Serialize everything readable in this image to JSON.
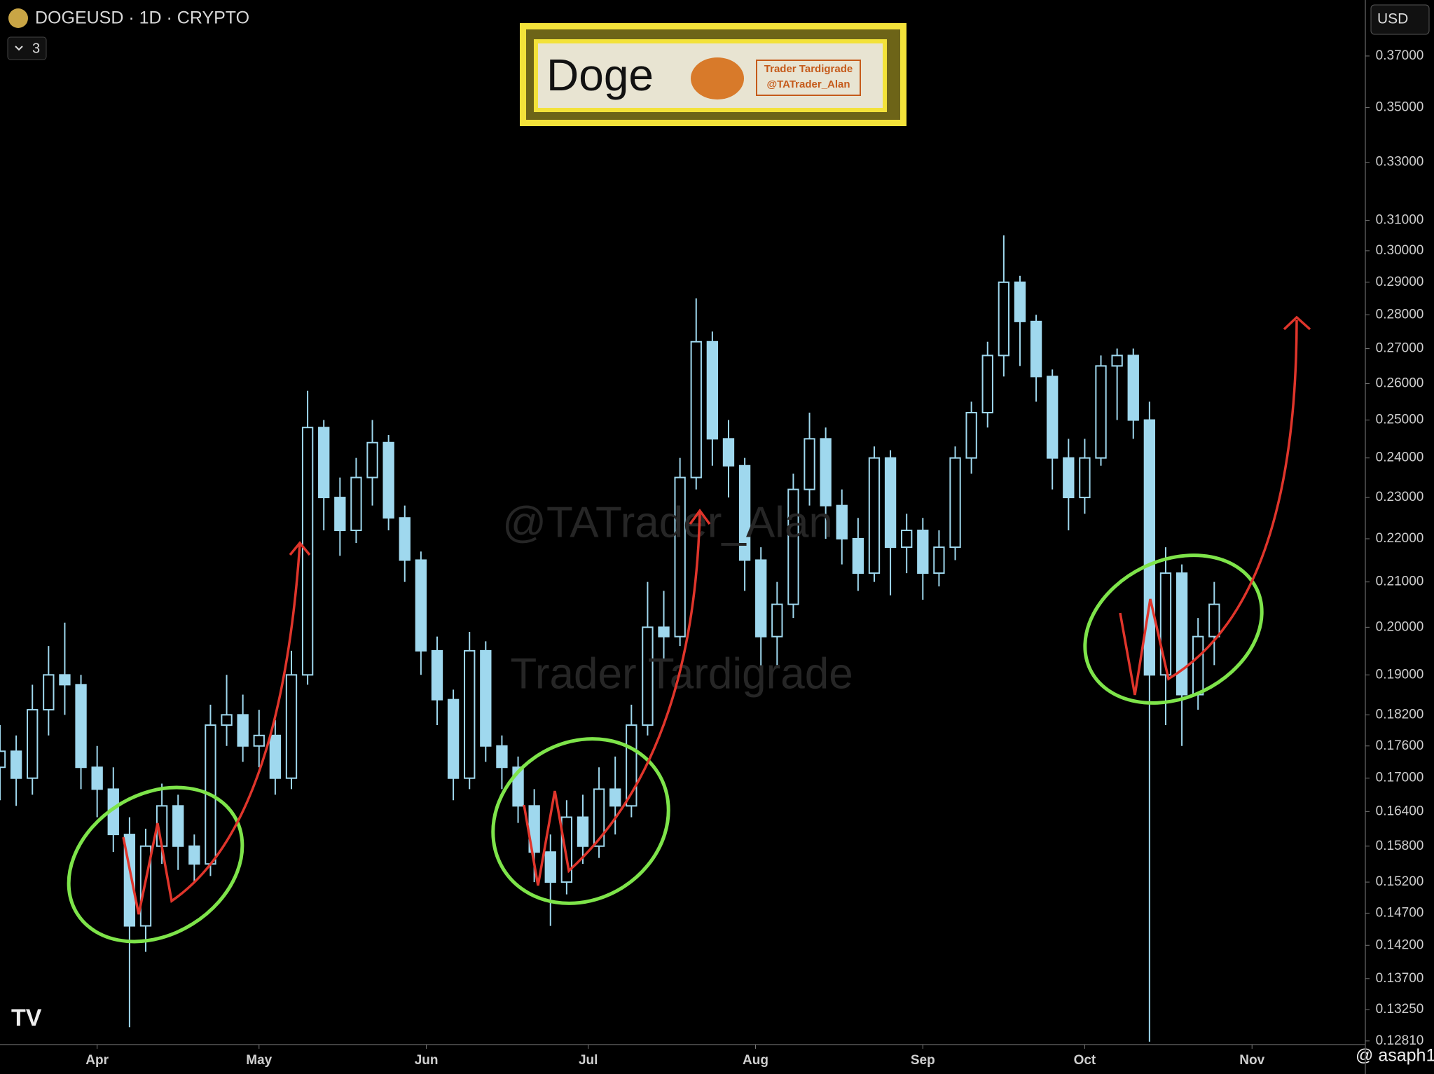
{
  "chart_data": {
    "type": "candlestick",
    "title": "DOGEUSD · 1D · CRYPTO",
    "indicator_count": 3,
    "currency": "USD",
    "logo_box": {
      "title": "Doge",
      "lines": [
        "Trader Tardigrade",
        "@TATrader_Alan"
      ]
    },
    "watermarks": [
      "@TATrader_Alan",
      "Trader Tardigrade"
    ],
    "credit": "@ asaph1",
    "log_scale": true,
    "color": "#9fd8ee",
    "xlim": [
      -18,
      235
    ],
    "xticks": [
      {
        "value": 0,
        "label": "Apr"
      },
      {
        "value": 30,
        "label": "May"
      },
      {
        "value": 61,
        "label": "Jun"
      },
      {
        "value": 91,
        "label": "Jul"
      },
      {
        "value": 122,
        "label": "Aug"
      },
      {
        "value": 153,
        "label": "Sep"
      },
      {
        "value": 183,
        "label": "Oct"
      },
      {
        "value": 214,
        "label": "Nov"
      }
    ],
    "ylim": [
      0.1276,
      0.393
    ],
    "yticks": [
      {
        "value": 0.37,
        "label": "0.37000"
      },
      {
        "value": 0.35,
        "label": "0.35000"
      },
      {
        "value": 0.33,
        "label": "0.33000"
      },
      {
        "value": 0.31,
        "label": "0.31000"
      },
      {
        "value": 0.3,
        "label": "0.30000"
      },
      {
        "value": 0.29,
        "label": "0.29000"
      },
      {
        "value": 0.28,
        "label": "0.28000"
      },
      {
        "value": 0.27,
        "label": "0.27000"
      },
      {
        "value": 0.26,
        "label": "0.26000"
      },
      {
        "value": 0.25,
        "label": "0.25000"
      },
      {
        "value": 0.24,
        "label": "0.24000"
      },
      {
        "value": 0.23,
        "label": "0.23000"
      },
      {
        "value": 0.22,
        "label": "0.22000"
      },
      {
        "value": 0.21,
        "label": "0.21000"
      },
      {
        "value": 0.2,
        "label": "0.20000"
      },
      {
        "value": 0.19,
        "label": "0.19000"
      },
      {
        "value": 0.182,
        "label": "0.18200"
      },
      {
        "value": 0.176,
        "label": "0.17600"
      },
      {
        "value": 0.17,
        "label": "0.17000"
      },
      {
        "value": 0.164,
        "label": "0.16400"
      },
      {
        "value": 0.158,
        "label": "0.15800"
      },
      {
        "value": 0.152,
        "label": "0.15200"
      },
      {
        "value": 0.147,
        "label": "0.14700"
      },
      {
        "value": 0.142,
        "label": "0.14200"
      },
      {
        "value": 0.137,
        "label": "0.13700"
      },
      {
        "value": 0.1325,
        "label": "0.13250"
      },
      {
        "value": 0.1281,
        "label": "0.12810"
      }
    ],
    "x": [
      -18,
      -15,
      -12,
      -9,
      -6,
      -3,
      0,
      3,
      6,
      9,
      12,
      15,
      18,
      21,
      24,
      27,
      30,
      33,
      36,
      39,
      42,
      45,
      48,
      51,
      54,
      57,
      60,
      63,
      66,
      69,
      72,
      75,
      78,
      81,
      84,
      87,
      90,
      93,
      96,
      99,
      102,
      105,
      108,
      111,
      114,
      117,
      120,
      123,
      126,
      129,
      132,
      135,
      138,
      141,
      144,
      147,
      150,
      153,
      156,
      159,
      162,
      165,
      168,
      171,
      174,
      177,
      180,
      183,
      186,
      189,
      192,
      195,
      198,
      201,
      204,
      207
    ],
    "open": [
      0.172,
      0.175,
      0.17,
      0.183,
      0.19,
      0.188,
      0.172,
      0.168,
      0.16,
      0.145,
      0.158,
      0.165,
      0.158,
      0.155,
      0.18,
      0.182,
      0.176,
      0.178,
      0.17,
      0.19,
      0.248,
      0.23,
      0.222,
      0.235,
      0.244,
      0.225,
      0.215,
      0.195,
      0.185,
      0.17,
      0.195,
      0.176,
      0.172,
      0.165,
      0.157,
      0.152,
      0.163,
      0.158,
      0.168,
      0.165,
      0.18,
      0.2,
      0.198,
      0.235,
      0.272,
      0.245,
      0.238,
      0.215,
      0.198,
      0.205,
      0.232,
      0.245,
      0.228,
      0.22,
      0.212,
      0.24,
      0.218,
      0.222,
      0.212,
      0.218,
      0.24,
      0.252,
      0.268,
      0.29,
      0.278,
      0.262,
      0.24,
      0.23,
      0.24,
      0.265,
      0.268,
      0.25,
      0.19,
      0.212,
      0.186,
      0.198
    ],
    "high": [
      0.18,
      0.178,
      0.188,
      0.196,
      0.201,
      0.19,
      0.176,
      0.172,
      0.163,
      0.161,
      0.169,
      0.167,
      0.16,
      0.184,
      0.19,
      0.186,
      0.183,
      0.181,
      0.195,
      0.258,
      0.25,
      0.235,
      0.24,
      0.25,
      0.246,
      0.228,
      0.217,
      0.198,
      0.187,
      0.199,
      0.197,
      0.178,
      0.174,
      0.168,
      0.16,
      0.166,
      0.167,
      0.172,
      0.174,
      0.184,
      0.21,
      0.208,
      0.24,
      0.285,
      0.275,
      0.25,
      0.24,
      0.218,
      0.21,
      0.236,
      0.252,
      0.248,
      0.232,
      0.225,
      0.243,
      0.242,
      0.226,
      0.225,
      0.222,
      0.243,
      0.255,
      0.272,
      0.305,
      0.292,
      0.28,
      0.264,
      0.245,
      0.245,
      0.268,
      0.27,
      0.27,
      0.255,
      0.218,
      0.214,
      0.202,
      0.21
    ],
    "low": [
      0.166,
      0.165,
      0.167,
      0.178,
      0.182,
      0.168,
      0.163,
      0.157,
      0.13,
      0.141,
      0.155,
      0.154,
      0.152,
      0.153,
      0.176,
      0.173,
      0.172,
      0.167,
      0.168,
      0.188,
      0.222,
      0.216,
      0.219,
      0.228,
      0.222,
      0.21,
      0.19,
      0.18,
      0.166,
      0.168,
      0.173,
      0.168,
      0.162,
      0.152,
      0.145,
      0.15,
      0.155,
      0.156,
      0.16,
      0.163,
      0.178,
      0.193,
      0.196,
      0.232,
      0.238,
      0.23,
      0.208,
      0.19,
      0.192,
      0.202,
      0.228,
      0.22,
      0.214,
      0.208,
      0.21,
      0.207,
      0.212,
      0.206,
      0.209,
      0.215,
      0.236,
      0.248,
      0.262,
      0.265,
      0.255,
      0.232,
      0.222,
      0.226,
      0.238,
      0.25,
      0.245,
      0.128,
      0.18,
      0.176,
      0.183,
      0.192
    ],
    "close": [
      0.175,
      0.17,
      0.183,
      0.19,
      0.188,
      0.172,
      0.168,
      0.16,
      0.145,
      0.158,
      0.165,
      0.158,
      0.155,
      0.18,
      0.182,
      0.176,
      0.178,
      0.17,
      0.19,
      0.248,
      0.23,
      0.222,
      0.235,
      0.244,
      0.225,
      0.215,
      0.195,
      0.185,
      0.17,
      0.195,
      0.176,
      0.172,
      0.165,
      0.157,
      0.152,
      0.163,
      0.158,
      0.168,
      0.165,
      0.18,
      0.2,
      0.198,
      0.235,
      0.272,
      0.245,
      0.238,
      0.215,
      0.198,
      0.205,
      0.232,
      0.245,
      0.228,
      0.22,
      0.212,
      0.24,
      0.218,
      0.222,
      0.212,
      0.218,
      0.24,
      0.252,
      0.268,
      0.29,
      0.278,
      0.262,
      0.24,
      0.23,
      0.24,
      0.265,
      0.268,
      0.25,
      0.19,
      0.212,
      0.186,
      0.198,
      0.205
    ]
  }
}
